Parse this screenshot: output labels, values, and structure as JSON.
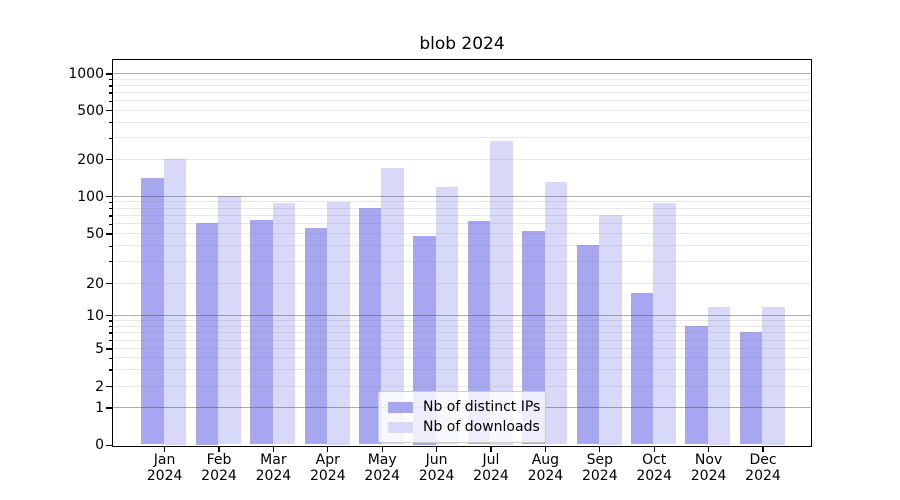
{
  "title": "blob 2024",
  "chart_data": {
    "type": "bar",
    "title": "blob 2024",
    "categories": [
      "Jan 2024",
      "Feb 2024",
      "Mar 2024",
      "Apr 2024",
      "May 2024",
      "Jun 2024",
      "Jul 2024",
      "Aug 2024",
      "Sep 2024",
      "Oct 2024",
      "Nov 2024",
      "Dec 2024"
    ],
    "series": [
      {
        "name": "Nb of distinct IPs",
        "color": "#a6a6f1",
        "values": [
          140,
          61,
          64,
          55,
          80,
          48,
          63,
          52,
          40,
          16,
          8,
          7
        ]
      },
      {
        "name": "Nb of downloads",
        "color": "#d8d8f8",
        "values": [
          200,
          100,
          88,
          89,
          170,
          118,
          280,
          130,
          70,
          87,
          12,
          12
        ]
      }
    ],
    "y_scale": "log-with-zero",
    "y_ticks": [
      1000,
      500,
      200,
      100,
      50,
      20,
      10,
      5,
      2,
      1,
      0
    ],
    "y_minor_gridlines": [
      2,
      3,
      4,
      5,
      6,
      7,
      8,
      9,
      20,
      30,
      40,
      50,
      60,
      70,
      80,
      90,
      200,
      300,
      400,
      500,
      600,
      700,
      800,
      900
    ],
    "y_minor_unlabeled_ticks": [
      3,
      4,
      6,
      7,
      8,
      9,
      30,
      40,
      60,
      70,
      80,
      90,
      300,
      400,
      600,
      700,
      800,
      900
    ],
    "grid": true,
    "legend_position": "lower center",
    "xlabel": "",
    "ylabel": ""
  },
  "colors": {
    "background": "#ffffff",
    "bar_ips": "#a6a6f1",
    "bar_downloads": "#d8d8f8",
    "major_grid": "rgba(70,70,70,0.45)",
    "minor_grid": "rgba(128,128,128,0.18)",
    "axis": "#000000",
    "text": "#000000",
    "legend_border": "#cccccc",
    "legend_bg": "rgba(255,255,255,0.8)"
  }
}
